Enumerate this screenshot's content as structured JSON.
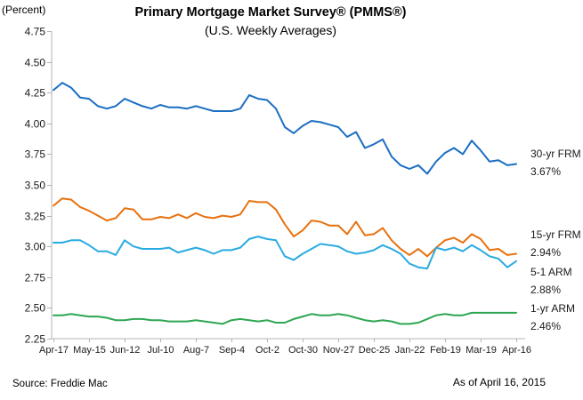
{
  "chart_data": {
    "type": "line",
    "title": "Primary Mortgage Market Survey® (PMMS®)",
    "subtitle": "(U.S. Weekly Averages)",
    "ylabel": "(Percent)",
    "ylim": [
      2.25,
      4.75
    ],
    "ytick_step": 0.25,
    "yticks": [
      "4.75",
      "4.50",
      "4.25",
      "4.00",
      "3.75",
      "3.50",
      "3.25",
      "3.00",
      "2.75",
      "2.50",
      "2.25"
    ],
    "grid": false,
    "legend_position": "right",
    "x": [
      "Apr-17",
      "Apr-24",
      "May-1",
      "May-8",
      "May-15",
      "May-22",
      "May-29",
      "Jun-5",
      "Jun-12",
      "Jun-19",
      "Jun-26",
      "Jul-3",
      "Jul-10",
      "Jul-17",
      "Jul-24",
      "Jul-31",
      "Aug-7",
      "Aug-14",
      "Aug-21",
      "Aug-28",
      "Sep-4",
      "Sep-11",
      "Sep-18",
      "Sep-25",
      "Oct-2",
      "Oct-9",
      "Oct-16",
      "Oct-23",
      "Oct-30",
      "Nov-6",
      "Nov-13",
      "Nov-20",
      "Nov-27",
      "Dec-4",
      "Dec-11",
      "Dec-18",
      "Dec-25",
      "Jan-1",
      "Jan-8",
      "Jan-15",
      "Jan-22",
      "Jan-29",
      "Feb-5",
      "Feb-12",
      "Feb-19",
      "Feb-26",
      "Mar-5",
      "Mar-12",
      "Mar-19",
      "Mar-26",
      "Apr-2",
      "Apr-9",
      "Apr-16"
    ],
    "xtick_every": 4,
    "xtick_labels": [
      "Apr-17",
      "May-15",
      "Jun-12",
      "Jul-10",
      "Aug-7",
      "Sep-4",
      "Oct-2",
      "Oct-30",
      "Nov-27",
      "Dec-25",
      "Jan-22",
      "Feb-19",
      "Mar-19",
      "Apr-16"
    ],
    "series": [
      {
        "name": "30-yr FRM",
        "final_label": "3.67%",
        "color": "#1b6ec2",
        "values": [
          4.27,
          4.33,
          4.29,
          4.21,
          4.2,
          4.14,
          4.12,
          4.14,
          4.2,
          4.17,
          4.14,
          4.12,
          4.15,
          4.13,
          4.13,
          4.12,
          4.14,
          4.12,
          4.1,
          4.1,
          4.1,
          4.12,
          4.23,
          4.2,
          4.19,
          4.12,
          3.97,
          3.92,
          3.98,
          4.02,
          4.01,
          3.99,
          3.97,
          3.89,
          3.93,
          3.8,
          3.83,
          3.87,
          3.73,
          3.66,
          3.63,
          3.66,
          3.59,
          3.69,
          3.76,
          3.8,
          3.75,
          3.86,
          3.78,
          3.69,
          3.7,
          3.66,
          3.67
        ]
      },
      {
        "name": "15-yr FRM",
        "final_label": "2.94%",
        "color": "#e8710f",
        "values": [
          3.33,
          3.39,
          3.38,
          3.32,
          3.29,
          3.25,
          3.21,
          3.23,
          3.31,
          3.3,
          3.22,
          3.22,
          3.24,
          3.23,
          3.26,
          3.23,
          3.27,
          3.24,
          3.23,
          3.25,
          3.24,
          3.26,
          3.37,
          3.36,
          3.36,
          3.3,
          3.18,
          3.08,
          3.13,
          3.21,
          3.2,
          3.17,
          3.17,
          3.1,
          3.2,
          3.09,
          3.1,
          3.15,
          3.05,
          2.98,
          2.93,
          2.98,
          2.92,
          2.99,
          3.05,
          3.07,
          3.03,
          3.1,
          3.06,
          2.97,
          2.98,
          2.93,
          2.94
        ]
      },
      {
        "name": "5-1 ARM",
        "final_label": "2.88%",
        "color": "#29abe2",
        "values": [
          3.03,
          3.03,
          3.05,
          3.05,
          3.01,
          2.96,
          2.96,
          2.93,
          3.05,
          3.0,
          2.98,
          2.98,
          2.98,
          2.99,
          2.95,
          2.97,
          2.99,
          2.97,
          2.94,
          2.97,
          2.97,
          2.99,
          3.06,
          3.08,
          3.06,
          3.05,
          2.92,
          2.89,
          2.94,
          2.98,
          3.02,
          3.01,
          3.0,
          2.96,
          2.94,
          2.95,
          2.97,
          3.01,
          2.98,
          2.94,
          2.86,
          2.83,
          2.82,
          2.99,
          2.97,
          2.99,
          2.96,
          3.01,
          2.97,
          2.92,
          2.9,
          2.83,
          2.88
        ]
      },
      {
        "name": "1-yr ARM",
        "final_label": "2.46%",
        "color": "#2ea651",
        "values": [
          2.44,
          2.44,
          2.45,
          2.44,
          2.43,
          2.43,
          2.42,
          2.4,
          2.4,
          2.41,
          2.41,
          2.4,
          2.4,
          2.39,
          2.39,
          2.39,
          2.4,
          2.39,
          2.38,
          2.37,
          2.4,
          2.41,
          2.4,
          2.39,
          2.4,
          2.38,
          2.38,
          2.41,
          2.43,
          2.45,
          2.44,
          2.44,
          2.45,
          2.44,
          2.42,
          2.4,
          2.39,
          2.4,
          2.39,
          2.37,
          2.37,
          2.38,
          2.41,
          2.44,
          2.45,
          2.44,
          2.44,
          2.46,
          2.46,
          2.46,
          2.46,
          2.46,
          2.46
        ]
      }
    ]
  },
  "footer": {
    "source": "Source: Freddie Mac",
    "as_of": "As of April 16, 2015"
  }
}
